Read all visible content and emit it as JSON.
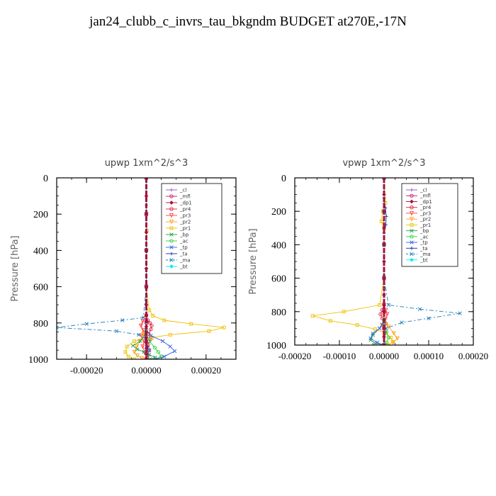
{
  "title": "jan24_clubb_c_invrs_tau_bkgndm  BUDGET at270E,-17N",
  "chart_data": [
    {
      "type": "line",
      "title": "upwp   1xm^2/s^3",
      "xlabel": "",
      "ylabel": "Pressure [hPa]",
      "xlim": [
        -0.0003,
        0.0003
      ],
      "ylim": [
        1000,
        0
      ],
      "xticks": [
        -0.0002,
        0,
        0.0002
      ],
      "xtick_labels": [
        "-0.00020",
        "0.00000",
        "0.00020"
      ],
      "yticks": [
        0,
        200,
        400,
        600,
        800,
        1000
      ],
      "ytick_labels": [
        "0",
        "200",
        "400",
        "600",
        "800",
        "1000"
      ],
      "legend_position": "top-right",
      "series": [
        {
          "name": "_cl",
          "color": "#8a56b8",
          "marker": "plus",
          "dash": "",
          "x": [
            0,
            0,
            0,
            0,
            0,
            0,
            0,
            0,
            0
          ],
          "y": [
            0,
            150,
            300,
            500,
            700,
            800,
            900,
            950,
            1000
          ]
        },
        {
          "name": "_mfl",
          "color": "#c0166e",
          "marker": "circle",
          "dash": "",
          "x": [
            0,
            0,
            0,
            0,
            0,
            0,
            0
          ],
          "y": [
            0,
            200,
            400,
            600,
            800,
            900,
            1000
          ]
        },
        {
          "name": "_dp1",
          "color": "#a8123a",
          "marker": "diamond",
          "dash": "",
          "x": [
            0,
            0,
            0,
            0,
            0,
            0,
            0,
            0,
            0,
            0,
            0,
            0,
            0,
            0,
            0,
            0,
            0
          ],
          "y": [
            0,
            100,
            200,
            300,
            400,
            500,
            600,
            700,
            760,
            790,
            820,
            850,
            880,
            910,
            940,
            970,
            1000
          ]
        },
        {
          "name": "_pr4",
          "color": "#e0203c",
          "marker": "circle",
          "dash": "",
          "x": [
            0,
            0,
            0,
            0,
            0,
            5e-06,
            1.2e-05,
            1.8e-05,
            1.5e-05,
            8e-06,
            1.4e-05,
            6e-06,
            1e-05,
            4e-06,
            2e-06
          ],
          "y": [
            0,
            200,
            400,
            600,
            760,
            785,
            800,
            815,
            835,
            860,
            890,
            920,
            950,
            980,
            1000
          ]
        },
        {
          "name": "_pr3",
          "color": "#ff4040",
          "marker": "tri",
          "dash": "",
          "x": [
            0,
            0,
            0,
            0,
            0,
            -1.2e-05,
            -1.8e-05,
            -1e-05,
            -1.6e-05,
            -8e-06,
            -1.2e-05,
            -5e-06,
            0
          ],
          "y": [
            0,
            200,
            400,
            600,
            760,
            790,
            815,
            840,
            870,
            900,
            930,
            965,
            1000
          ]
        },
        {
          "name": "_pr2",
          "color": "#ffa020",
          "marker": "tri",
          "dash": "",
          "x": [
            0,
            0,
            0,
            0,
            0,
            -1e-05,
            -2.2e-05,
            -3.2e-05,
            -4e-05,
            -3e-05,
            -1.5e-05,
            0
          ],
          "y": [
            0,
            200,
            400,
            600,
            800,
            860,
            900,
            930,
            960,
            980,
            995,
            1000
          ]
        },
        {
          "name": "_pr1",
          "color": "#f0c000",
          "marker": "square",
          "dash": "",
          "x": [
            0,
            0,
            2e-06,
            0,
            1e-05,
            2.2e-05,
            6e-05,
            0.00015,
            0.00026,
            0.00021,
            8e-05,
            2e-05,
            -4e-05,
            -6.5e-05,
            -7e-05,
            -6e-05,
            -4e-05
          ],
          "y": [
            0,
            200,
            290,
            600,
            730,
            760,
            785,
            805,
            825,
            845,
            865,
            880,
            900,
            930,
            960,
            985,
            1000
          ]
        },
        {
          "name": "_bp",
          "color": "#20a040",
          "marker": "cross",
          "dash": "",
          "x": [
            0,
            0,
            0,
            0,
            0,
            -2e-05,
            -4.5e-05,
            -3e-05,
            -8e-06,
            1e-05,
            3e-05,
            1.2e-05
          ],
          "y": [
            0,
            200,
            400,
            600,
            850,
            900,
            925,
            945,
            960,
            975,
            990,
            1000
          ]
        },
        {
          "name": "_ac",
          "color": "#30d040",
          "marker": "circle",
          "dash": "",
          "x": [
            0,
            0,
            0,
            0,
            0,
            1e-05,
            2.8e-05,
            4e-05,
            5e-05,
            3e-05
          ],
          "y": [
            0,
            200,
            400,
            600,
            850,
            900,
            935,
            960,
            985,
            1000
          ]
        },
        {
          "name": "_tp",
          "color": "#3060e0",
          "marker": "cross",
          "dash": "",
          "x": [
            0,
            0,
            0,
            0,
            0,
            1.5e-05,
            5.5e-05,
            8e-05,
            9.5e-05,
            6e-05,
            3e-05
          ],
          "y": [
            0,
            200,
            400,
            600,
            840,
            870,
            900,
            930,
            955,
            985,
            1000
          ]
        },
        {
          "name": "_ta",
          "color": "#1a2aa0",
          "marker": "plus",
          "dash": "",
          "x": [
            0,
            0,
            0,
            0,
            0,
            -5e-06,
            5e-06,
            3e-06,
            0
          ],
          "y": [
            0,
            200,
            400,
            600,
            800,
            880,
            930,
            970,
            1000
          ]
        },
        {
          "name": "_ma",
          "color": "#1a7ab8",
          "marker": "cross",
          "dash": "6,3,2,3",
          "x": [
            0,
            0,
            0,
            0,
            -1e-05,
            -8e-05,
            -0.0002,
            -0.0003,
            -0.0001,
            -2.5e-05,
            0,
            1e-05,
            5e-06
          ],
          "y": [
            0,
            200,
            400,
            600,
            770,
            785,
            805,
            825,
            845,
            865,
            900,
            950,
            1000
          ]
        },
        {
          "name": "_bt",
          "color": "#00e8ff",
          "marker": "diamond",
          "dash": "",
          "x": [
            0,
            0,
            0,
            0,
            0,
            0,
            0
          ],
          "y": [
            0,
            200,
            400,
            600,
            800,
            900,
            1000
          ]
        }
      ]
    },
    {
      "type": "line",
      "title": "vpwp   1xm^2/s^3",
      "xlabel": "",
      "ylabel": "Pressure [hPa]",
      "xlim": [
        -0.0002,
        0.0002
      ],
      "ylim": [
        1000,
        0
      ],
      "xticks": [
        -0.0002,
        -0.0001,
        0,
        0.0001,
        0.0002
      ],
      "xtick_labels": [
        "-0.00020",
        "-0.00010",
        "0.00000",
        "0.00010",
        "0.00020"
      ],
      "yticks": [
        0,
        200,
        400,
        600,
        800,
        1000
      ],
      "ytick_labels": [
        "0",
        "200",
        "400",
        "600",
        "800",
        "1000"
      ],
      "legend_position": "top-right",
      "series": [
        {
          "name": "_cl",
          "color": "#8a56b8",
          "marker": "plus",
          "dash": "",
          "x": [
            0,
            0,
            0,
            0,
            0,
            0,
            0,
            0
          ],
          "y": [
            0,
            150,
            300,
            500,
            700,
            800,
            900,
            1000
          ]
        },
        {
          "name": "_mfl",
          "color": "#c0166e",
          "marker": "circle",
          "dash": "",
          "x": [
            0,
            0,
            0,
            0,
            0,
            0,
            0
          ],
          "y": [
            0,
            200,
            400,
            600,
            800,
            900,
            1000
          ]
        },
        {
          "name": "_dp1",
          "color": "#a8123a",
          "marker": "diamond",
          "dash": "",
          "x": [
            0,
            0,
            0,
            0,
            0,
            0,
            0,
            0,
            0,
            0,
            0,
            0,
            0,
            0
          ],
          "y": [
            0,
            100,
            200,
            300,
            400,
            500,
            600,
            700,
            760,
            800,
            850,
            900,
            950,
            1000
          ]
        },
        {
          "name": "_pr4",
          "color": "#e0203c",
          "marker": "circle",
          "dash": "",
          "x": [
            0,
            0,
            0,
            0,
            0,
            -4e-06,
            -8e-06,
            -4e-06,
            4e-06,
            2e-06,
            0
          ],
          "y": [
            0,
            200,
            400,
            600,
            760,
            790,
            815,
            840,
            870,
            920,
            1000
          ]
        },
        {
          "name": "_pr3",
          "color": "#ff4040",
          "marker": "tri",
          "dash": "",
          "x": [
            0,
            0,
            0,
            0,
            0,
            4e-06,
            7e-06,
            3e-06,
            -4e-06,
            0
          ],
          "y": [
            0,
            200,
            400,
            600,
            760,
            790,
            815,
            845,
            880,
            1000
          ]
        },
        {
          "name": "_pr2",
          "color": "#ffa020",
          "marker": "tri",
          "dash": "",
          "x": [
            0,
            0,
            0,
            0,
            0,
            1e-05,
            2.2e-05,
            3e-05,
            2e-05,
            5e-06
          ],
          "y": [
            0,
            200,
            400,
            600,
            850,
            890,
            930,
            960,
            985,
            1000
          ]
        },
        {
          "name": "_pr1",
          "color": "#f0c000",
          "marker": "square",
          "dash": "",
          "x": [
            0,
            3e-06,
            -3e-06,
            -6e-06,
            0,
            0,
            0,
            -1e-05,
            -9e-05,
            -0.00016,
            -0.00012,
            -6e-05,
            -2e-05,
            5e-06,
            1.5e-05,
            2e-05,
            1e-05
          ],
          "y": [
            0,
            150,
            200,
            260,
            300,
            400,
            600,
            760,
            800,
            825,
            855,
            880,
            905,
            930,
            955,
            980,
            1000
          ]
        },
        {
          "name": "_bp",
          "color": "#20a040",
          "marker": "cross",
          "dash": "",
          "x": [
            0,
            0,
            0,
            0,
            0,
            -1e-05,
            -2.5e-05,
            -3e-05,
            -2e-05,
            0
          ],
          "y": [
            0,
            200,
            400,
            600,
            850,
            900,
            940,
            970,
            990,
            1000
          ]
        },
        {
          "name": "_ac",
          "color": "#30d040",
          "marker": "circle",
          "dash": "",
          "x": [
            0,
            0,
            0,
            0,
            0,
            5e-06,
            1e-05,
            6e-06,
            0
          ],
          "y": [
            0,
            200,
            400,
            600,
            880,
            920,
            955,
            985,
            1000
          ]
        },
        {
          "name": "_tp",
          "color": "#3060e0",
          "marker": "cross",
          "dash": "",
          "x": [
            0,
            0,
            0,
            0,
            0,
            -1e-05,
            -2.5e-05,
            -3e-05,
            -1.5e-05,
            0
          ],
          "y": [
            0,
            200,
            400,
            600,
            860,
            900,
            930,
            960,
            985,
            1000
          ]
        },
        {
          "name": "_ta",
          "color": "#1a2aa0",
          "marker": "plus",
          "dash": "",
          "x": [
            0,
            0,
            3e-06,
            5e-06,
            4e-06,
            0,
            0,
            0
          ],
          "y": [
            0,
            120,
            180,
            230,
            280,
            330,
            600,
            1000
          ]
        },
        {
          "name": "_ma",
          "color": "#1a7ab8",
          "marker": "cross",
          "dash": "6,3,2,3",
          "x": [
            0,
            0,
            0,
            0,
            1e-05,
            8e-05,
            0.00017,
            0.0001,
            4e-05,
            5e-06,
            0
          ],
          "y": [
            0,
            200,
            400,
            600,
            760,
            785,
            810,
            840,
            865,
            900,
            1000
          ]
        },
        {
          "name": "_bt",
          "color": "#00e8ff",
          "marker": "diamond",
          "dash": "",
          "x": [
            0,
            0,
            0,
            0,
            0,
            0,
            0
          ],
          "y": [
            0,
            200,
            400,
            600,
            800,
            900,
            1000
          ]
        }
      ]
    }
  ]
}
